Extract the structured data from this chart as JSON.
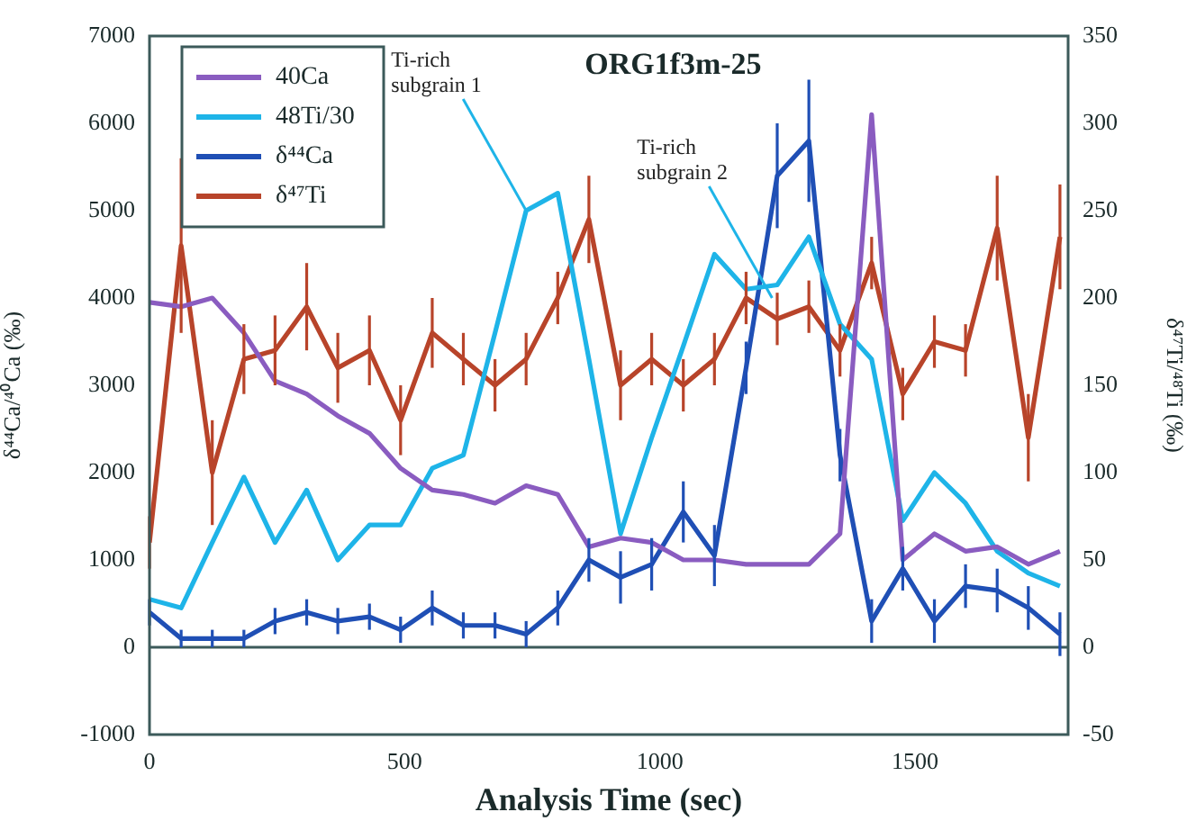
{
  "chart_data": {
    "type": "line",
    "title": "ORG1f3m-25",
    "xlabel": "Analysis Time (sec)",
    "ylabel": "δ⁴⁴Ca/⁴⁰Ca (‰)",
    "y2label": "δ⁴⁷Ti/⁴⁸Ti (‰)",
    "x": [
      0,
      62,
      123,
      185,
      246,
      308,
      369,
      431,
      492,
      554,
      615,
      677,
      738,
      800,
      861,
      923,
      984,
      1046,
      1107,
      1169,
      1230,
      1292,
      1353,
      1415,
      1476,
      1538,
      1599,
      1661,
      1722,
      1784
    ],
    "series": [
      {
        "name": "40Ca",
        "color": "#8a5cc0",
        "values": [
          3950,
          3900,
          4000,
          3600,
          3050,
          2900,
          2650,
          2450,
          2050,
          1800,
          1750,
          1650,
          1850,
          1750,
          1150,
          1250,
          1200,
          1000,
          1000,
          950,
          950,
          950,
          1300,
          6100,
          1000,
          1300,
          1100,
          1150,
          950,
          1100
        ]
      },
      {
        "name": "48Ti/30",
        "color": "#1eb4e8",
        "values": [
          550,
          450,
          1200,
          1950,
          1200,
          1800,
          1000,
          1400,
          1400,
          2050,
          2200,
          3600,
          5000,
          5200,
          3300,
          1300,
          2400,
          3450,
          4500,
          4100,
          4150,
          4700,
          3700,
          3300,
          1450,
          2000,
          1650,
          1100,
          850,
          700
        ]
      },
      {
        "name": "δ⁴⁴Ca",
        "color": "#1f4fb5",
        "values": [
          400,
          100,
          100,
          100,
          300,
          400,
          300,
          350,
          200,
          450,
          250,
          250,
          150,
          450,
          1000,
          800,
          950,
          1550,
          1050,
          3200,
          5400,
          5800,
          2200,
          300,
          900,
          300,
          700,
          650,
          450,
          150
        ],
        "errors": [
          150,
          100,
          100,
          100,
          150,
          150,
          150,
          150,
          150,
          200,
          150,
          150,
          150,
          200,
          250,
          300,
          300,
          350,
          350,
          300,
          600,
          700,
          300,
          250,
          250,
          250,
          250,
          250,
          250,
          250
        ]
      },
      {
        "name": "δ⁴⁷Ti",
        "color": "#b8442a",
        "axis": "y2",
        "values": [
          60,
          230,
          100,
          165,
          170,
          195,
          160,
          170,
          130,
          180,
          165,
          150,
          165,
          200,
          245,
          150,
          165,
          150,
          165,
          200,
          188,
          195,
          170,
          220,
          145,
          175,
          170,
          240,
          120,
          235
        ],
        "errors": [
          15,
          50,
          30,
          20,
          20,
          25,
          20,
          20,
          20,
          20,
          15,
          15,
          15,
          15,
          25,
          20,
          15,
          15,
          15,
          15,
          15,
          15,
          15,
          15,
          15,
          15,
          15,
          30,
          25,
          30
        ]
      }
    ],
    "xlim": [
      0,
      1800
    ],
    "xticks": [
      0,
      500,
      1000,
      1500
    ],
    "ylim": [
      -1000,
      7000
    ],
    "yticks": [
      -1000,
      0,
      1000,
      2000,
      3000,
      4000,
      5000,
      6000,
      7000
    ],
    "y2lim": [
      -50,
      350
    ],
    "y2ticks": [
      -50,
      0,
      50,
      100,
      150,
      200,
      250,
      300,
      350
    ],
    "ref_lines": [
      {
        "axis": "y",
        "value": 0,
        "color": "#3c5a5a"
      }
    ],
    "annotations": [
      {
        "text": "Ti-rich subgrain 1",
        "x": 738,
        "y": 5000
      },
      {
        "text": "Ti-rich subgrain 2",
        "x": 1220,
        "y": 4000
      }
    ],
    "legend": "top left",
    "grid": false,
    "marker": "none",
    "line_style": "solid"
  }
}
